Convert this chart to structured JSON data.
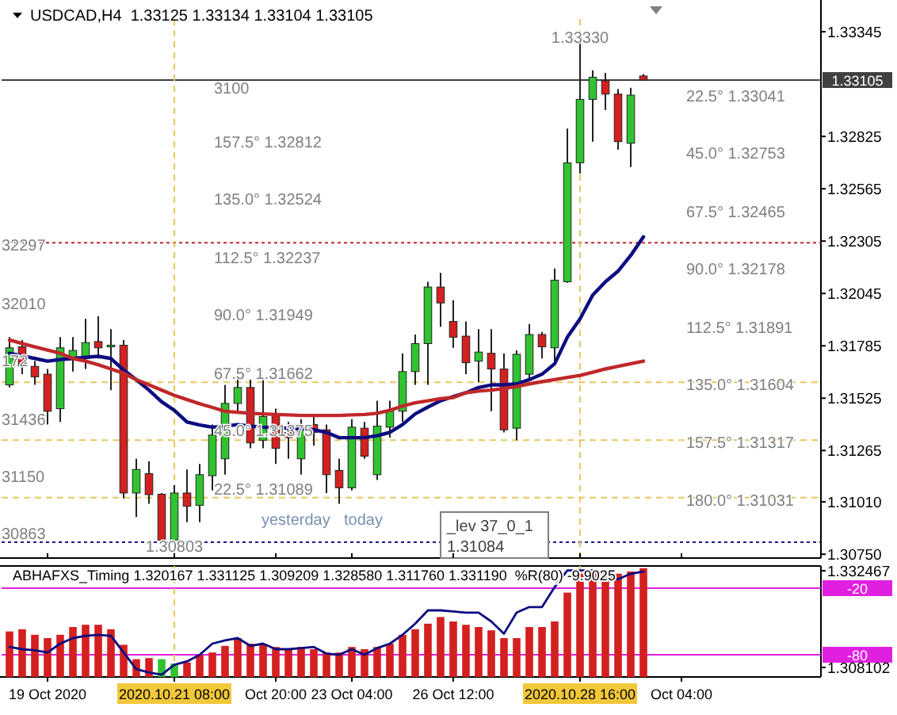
{
  "chart_data": [
    {
      "type": "candlestick",
      "title": "USDCAD,H4  1.33125 1.33134 1.33104 1.33105",
      "tick_labels": "y",
      "categories": [
        null,
        null,
        null,
        "19 Oct 2020",
        null,
        null,
        null,
        null,
        null,
        null,
        null,
        null,
        null,
        "2020.10.21 08:00",
        null,
        null,
        null,
        null,
        null,
        null,
        null,
        "Oct 20:00",
        null,
        null,
        null,
        null,
        null,
        "23 Oct 04:00",
        null,
        null,
        null,
        null,
        null,
        null,
        null,
        "26 Oct 12:00",
        null,
        null,
        null,
        null,
        null,
        null,
        null,
        null,
        null,
        "2020.10.28 16:00",
        null,
        null,
        null,
        null,
        null,
        null,
        null,
        "Oct 04:00",
        null,
        null,
        null,
        null,
        null,
        null,
        null,
        null,
        null,
        null
      ],
      "ohlc": [
        [
          1.31591,
          1.31828,
          1.31578,
          1.31775
        ],
        [
          1.3178,
          1.31814,
          1.31644,
          1.31683
        ],
        [
          1.31683,
          1.31709,
          1.31591,
          1.31631
        ],
        [
          1.31644,
          1.3167,
          1.31394,
          1.3146
        ],
        [
          1.31473,
          1.31828,
          1.31407,
          1.31775
        ],
        [
          1.31722,
          1.31828,
          1.31657,
          1.31762
        ],
        [
          1.31722,
          1.31919,
          1.3167,
          1.31801
        ],
        [
          1.31806,
          1.31932,
          1.31722,
          1.31775
        ],
        [
          1.31783,
          1.31868,
          1.31565,
          1.31788
        ],
        [
          1.31788,
          1.31814,
          1.31027,
          1.31054
        ],
        [
          1.31054,
          1.31224,
          1.30935,
          1.31171
        ],
        [
          1.3115,
          1.31211,
          1.31001,
          1.31046
        ],
        [
          1.31048,
          1.31054,
          1.3081,
          1.3082
        ],
        [
          1.3082,
          1.31093,
          1.30803,
          1.31054
        ],
        [
          1.31054,
          1.31171,
          1.30909,
          1.30988
        ],
        [
          1.30993,
          1.31198,
          1.30909,
          1.31145
        ],
        [
          1.3114,
          1.31394,
          1.31067,
          1.31342
        ],
        [
          1.31224,
          1.31591,
          1.31145,
          1.31499
        ],
        [
          1.31499,
          1.3167,
          1.3146,
          1.31578
        ],
        [
          1.31578,
          1.31617,
          1.31276,
          1.31303
        ],
        [
          1.31316,
          1.31617,
          1.31276,
          1.31434
        ],
        [
          1.31447,
          1.31473,
          1.31198,
          1.31276
        ],
        [
          1.31355,
          1.31407,
          1.31224,
          1.31329
        ],
        [
          1.31224,
          1.31421,
          1.31145,
          1.31381
        ],
        [
          1.31394,
          1.31447,
          1.31289,
          1.31355
        ],
        [
          1.31368,
          1.31394,
          1.31054,
          1.31145
        ],
        [
          1.31166,
          1.31224,
          1.31001,
          1.3108
        ],
        [
          1.3108,
          1.31421,
          1.31067,
          1.31381
        ],
        [
          1.31376,
          1.31407,
          1.31224,
          1.31237
        ],
        [
          1.31145,
          1.31512,
          1.31119,
          1.31386
        ],
        [
          1.31381,
          1.31512,
          1.31329,
          1.3146
        ],
        [
          1.3146,
          1.31748,
          1.31407,
          1.31657
        ],
        [
          1.31657,
          1.31841,
          1.31591,
          1.31796
        ],
        [
          1.31796,
          1.32103,
          1.31591,
          1.32077
        ],
        [
          1.32077,
          1.32147,
          1.3188,
          1.31998
        ],
        [
          1.31906,
          1.32011,
          1.31775,
          1.31828
        ],
        [
          1.31833,
          1.31906,
          1.31644,
          1.31701
        ],
        [
          1.31709,
          1.31868,
          1.31604,
          1.31754
        ],
        [
          1.31748,
          1.31868,
          1.3146,
          1.3167
        ],
        [
          1.3167,
          1.31748,
          1.31355,
          1.31368
        ],
        [
          1.31376,
          1.31762,
          1.31316,
          1.31743
        ],
        [
          1.31644,
          1.31893,
          1.31617,
          1.31841
        ],
        [
          1.31841,
          1.31854,
          1.31722,
          1.3178
        ],
        [
          1.31775,
          1.32169,
          1.31696,
          1.32111
        ],
        [
          1.32103,
          1.32864,
          1.32098,
          1.32694
        ],
        [
          1.32694,
          1.3333,
          1.32641,
          1.33009
        ],
        [
          1.33009,
          1.33153,
          1.32799,
          1.33119
        ],
        [
          1.33101,
          1.3314,
          1.32956,
          1.33035
        ],
        [
          1.33035,
          1.33061,
          1.32759,
          1.32799
        ],
        [
          1.32791,
          1.33066,
          1.32673,
          1.3303
        ],
        [
          1.33125,
          1.33134,
          1.33104,
          1.33105
        ],
        null,
        null,
        null,
        null,
        null,
        null,
        null,
        null,
        null,
        null,
        null,
        null,
        null
      ],
      "colors": [
        "#2fc42f",
        "#d42020",
        "#d42020",
        "#d42020",
        "#2fc42f",
        "#2fc42f",
        "#2fc42f",
        "#d42020",
        "#2fc42f",
        "#d42020",
        "#2fc42f",
        "#d42020",
        "#d42020",
        "#2fc42f",
        "#d42020",
        "#2fc42f",
        "#2fc42f",
        "#2fc42f",
        "#2fc42f",
        "#d42020",
        "#2fc42f",
        "#d42020",
        "#d42020",
        "#2fc42f",
        "#d42020",
        "#d42020",
        "#d42020",
        "#2fc42f",
        "#d42020",
        "#2fc42f",
        "#2fc42f",
        "#2fc42f",
        "#2fc42f",
        "#2fc42f",
        "#d42020",
        "#d42020",
        "#d42020",
        "#2fc42f",
        "#d42020",
        "#d42020",
        "#2fc42f",
        "#2fc42f",
        "#d42020",
        "#2fc42f",
        "#2fc42f",
        "#2fc42f",
        "#2fc42f",
        "#d42020",
        "#d42020",
        "#2fc42f",
        "#d42020",
        null,
        null,
        null,
        null,
        null,
        null,
        null,
        null,
        null,
        null,
        null,
        null,
        null
      ],
      "series": [
        {
          "type": "line",
          "color": "#0c0c80",
          "values": [
            1.31748,
            1.31735,
            1.31722,
            1.31709,
            1.31717,
            1.31722,
            1.31728,
            1.31733,
            1.31722,
            1.31665,
            1.31617,
            1.31565,
            1.31507,
            1.31465,
            1.31407,
            1.31392,
            1.31381,
            1.31386,
            1.31394,
            1.31386,
            1.31381,
            1.31379,
            1.31376,
            1.31373,
            1.31368,
            1.31355,
            1.31329,
            1.31329,
            1.31329,
            1.31339,
            1.31355,
            1.31394,
            1.31447,
            1.31481,
            1.31512,
            1.31533,
            1.31552,
            1.31578,
            1.31591,
            1.31591,
            1.31596,
            1.31617,
            1.31644,
            1.31696,
            1.31828,
            1.31919,
            1.32037,
            1.32103,
            1.32156,
            1.32234,
            1.32326,
            null,
            null,
            null,
            null,
            null,
            null,
            null,
            null,
            null,
            null,
            null,
            null,
            null
          ]
        },
        {
          "type": "line",
          "color": "#c0282a",
          "values": [
            1.31814,
            1.31796,
            1.3178,
            1.31764,
            1.31748,
            1.31722,
            1.31709,
            1.31691,
            1.3167,
            1.31649,
            1.31617,
            1.31591,
            1.31565,
            1.31539,
            1.31518,
            1.31497,
            1.31479,
            1.3146,
            1.31455,
            1.3145,
            1.31447,
            1.31444,
            1.31442,
            1.31439,
            1.31439,
            1.31439,
            1.31439,
            1.31442,
            1.31444,
            1.3145,
            1.31465,
            1.31486,
            1.31502,
            1.31512,
            1.31523,
            1.31528,
            1.31552,
            1.3156,
            1.31565,
            1.31573,
            1.31583,
            1.31596,
            1.31607,
            1.31617,
            1.31628,
            1.31638,
            1.31654,
            1.3167,
            1.31683,
            1.31696,
            1.31709,
            null,
            null,
            null,
            null,
            null,
            null,
            null,
            null,
            null,
            null,
            null,
            null,
            null
          ]
        }
      ],
      "ylim": [
        1.30731,
        1.33408
      ],
      "yticks": [
        1.33345,
        1.32825,
        1.32565,
        1.32305,
        1.32045,
        1.31785,
        1.31525,
        1.31265,
        {
          "value": 1.3101,
          "label": "1.31010"
        },
        {
          "value": 1.3075,
          "label": "1.30750"
        }
      ],
      "ref_lines": [
        {
          "axis": "y",
          "value": 1.33105,
          "label": "1.33105",
          "color": "#404040",
          "line_style": "solid"
        },
        {
          "axis": "y",
          "value": 1.32297,
          "color": "#c0282a",
          "line_style": "dotted"
        },
        {
          "axis": "y",
          "value": 1.3081,
          "color": "#1a1a8c",
          "line_style": "dotted"
        },
        {
          "axis": "y",
          "value": 1.31604,
          "color": "#e8c860",
          "line_style": "dashed"
        },
        {
          "axis": "y",
          "value": 1.31317,
          "color": "#e8c860",
          "line_style": "dashed"
        },
        {
          "axis": "y",
          "value": 1.31031,
          "color": "#e8c860",
          "line_style": "dashed"
        },
        {
          "axis": "x",
          "value": "2020.10.21 08:00",
          "color": "#e8c860",
          "line_style": "dashed"
        },
        {
          "axis": "x",
          "value": "2020.10.28 16:00",
          "color": "#e8c860",
          "line_style": "dashed"
        }
      ],
      "annotations": [
        "3100",
        "157.5° 1.32812",
        "135.0° 1.32524",
        "112.5° 1.32237",
        "90.0° 1.31949",
        "67.5° 1.31662",
        "45.0° 1.31375",
        "22.5° 1.31089",
        "22.5° 1.33041",
        "45.0° 1.32753",
        "67.5° 1.32465",
        "90.0° 1.32178",
        "112.5° 1.31891",
        {
          "text": "135.0° 1.31604",
          "y": 1.31604
        },
        {
          "text": "157.5° 1.31317",
          "y": 1.31317
        },
        {
          "text": "180.0° 1.31031",
          "y": 1.31031
        },
        "32297",
        "32010",
        "172",
        "31436",
        "31150",
        "30863",
        "yesterday",
        "today",
        "_lev 37_0_1",
        "1.31084",
        {
          "text": "1.33330",
          "x": "2020.10.28 16:00",
          "y": 1.3333
        },
        {
          "text": "1.30803",
          "x": "2020.10.21 08:00",
          "y": 1.30803
        }
      ]
    },
    {
      "type": "bar",
      "title": "ABHAFXS_Timing 1.320167 1.331125 1.309209 1.328580 1.311760 1.331190  %R(80) -9.9025",
      "categories": [
        null,
        null,
        null,
        "19 Oct 2020",
        null,
        null,
        null,
        null,
        null,
        null,
        null,
        null,
        null,
        "2020.10.21 08:00",
        null,
        null,
        null,
        null,
        null,
        null,
        null,
        "Oct 20:00",
        null,
        null,
        null,
        null,
        null,
        "23 Oct 04:00",
        null,
        null,
        null,
        null,
        null,
        null,
        null,
        "26 Oct 12:00",
        null,
        null,
        null,
        null,
        null,
        null,
        null,
        null,
        null,
        "2020.10.28 16:00",
        null,
        null,
        null,
        null,
        null,
        null,
        null,
        "Oct 04:00",
        null,
        null,
        null,
        null,
        null,
        null,
        null,
        null,
        null,
        null
      ],
      "series": [
        {
          "type": "bar",
          "base": [
            -100,
            -100,
            -100,
            -100,
            -100,
            -100,
            -100,
            -100,
            -100,
            -100,
            -100,
            -100,
            -100,
            -100,
            -100,
            -100,
            -100,
            -100,
            -100,
            -100,
            -100,
            -100,
            -100,
            -100,
            -100,
            -100,
            -100,
            -100,
            -100,
            -100,
            -100,
            -100,
            -100,
            -100,
            -100,
            -100,
            -100,
            -100,
            -100,
            -100,
            -100,
            -100,
            -100,
            -100,
            -100,
            -100,
            -100,
            -100,
            -100,
            -100,
            -100,
            null,
            null,
            null,
            null,
            null,
            null,
            null,
            null,
            null,
            null,
            null,
            null,
            null
          ],
          "colors": [
            "#d42020",
            "#d42020",
            "#d42020",
            "#d42020",
            "#d42020",
            "#d42020",
            "#d42020",
            "#d42020",
            "#d42020",
            "#d42020",
            "#d42020",
            "#d42020",
            "#2fc42f",
            "#2fc42f",
            "#d42020",
            "#d42020",
            "#d42020",
            "#d42020",
            "#d42020",
            "#d42020",
            "#d42020",
            "#d42020",
            "#d42020",
            "#d42020",
            "#d42020",
            "#d42020",
            "#d42020",
            "#d42020",
            "#d42020",
            "#d42020",
            "#d42020",
            "#d42020",
            "#d42020",
            "#d42020",
            "#d42020",
            "#d42020",
            "#d42020",
            "#d42020",
            "#d42020",
            "#d42020",
            "#d42020",
            "#d42020",
            "#d42020",
            "#d42020",
            "#d42020",
            "#d42020",
            "#d42020",
            "#d42020",
            "#d42020",
            "#d42020",
            "#d42020",
            null,
            null,
            null,
            null,
            null,
            null,
            null,
            null,
            null,
            null,
            null,
            null,
            null
          ],
          "values": [
            41,
            43,
            38,
            35,
            38,
            45,
            47,
            47,
            43,
            29,
            16,
            17,
            16,
            12,
            13,
            20,
            22,
            28,
            35,
            30,
            30,
            27,
            25,
            27,
            25,
            22,
            22,
            27,
            25,
            27,
            30,
            38,
            43,
            48,
            54,
            50,
            47,
            45,
            42,
            35,
            35,
            45,
            45,
            50,
            76,
            93,
            96,
            95,
            93,
            95,
            98,
            null,
            null,
            null,
            null,
            null,
            null,
            null,
            null,
            null,
            null,
            null,
            null,
            null
          ]
        },
        {
          "type": "line",
          "color": "#0c0c80",
          "values": [
            -73,
            -75,
            -76,
            -78,
            -70,
            -65,
            -63,
            -62,
            -63,
            -78,
            -93,
            -96,
            -98,
            -89,
            -86,
            -80,
            -70,
            -67,
            -65,
            -72,
            -70,
            -75,
            -75,
            -74,
            -73,
            -79,
            -80,
            -75,
            -80,
            -74,
            -70,
            -62,
            -52,
            -40,
            -40,
            -41,
            -42,
            -42,
            -50,
            -61,
            -42,
            -37,
            -37,
            -19,
            -4,
            -4,
            -4,
            -7,
            -12,
            -7,
            -5,
            null,
            null,
            null,
            null,
            null,
            null,
            null,
            null,
            null,
            null,
            null,
            null,
            null
          ]
        }
      ],
      "ylim": [
        -100,
        0
      ],
      "yticks": [
        -20,
        -80
      ],
      "y2lim": [
        1.305706,
        1.333665
      ],
      "y2ticks": [
        1.332467,
        1.308102
      ],
      "ref_lines": [
        {
          "axis": "y",
          "value": -20,
          "color": "#e020e0",
          "line_style": "solid"
        },
        {
          "axis": "y",
          "value": -80,
          "color": "#e020e0",
          "line_style": "solid"
        },
        {
          "axis": "x",
          "value": "2020.10.21 08:00",
          "color": "#e8c860",
          "line_style": "dashed"
        },
        {
          "axis": "x",
          "value": "2020.10.28 16:00",
          "color": "#e8c860",
          "line_style": "dashed"
        }
      ]
    }
  ]
}
